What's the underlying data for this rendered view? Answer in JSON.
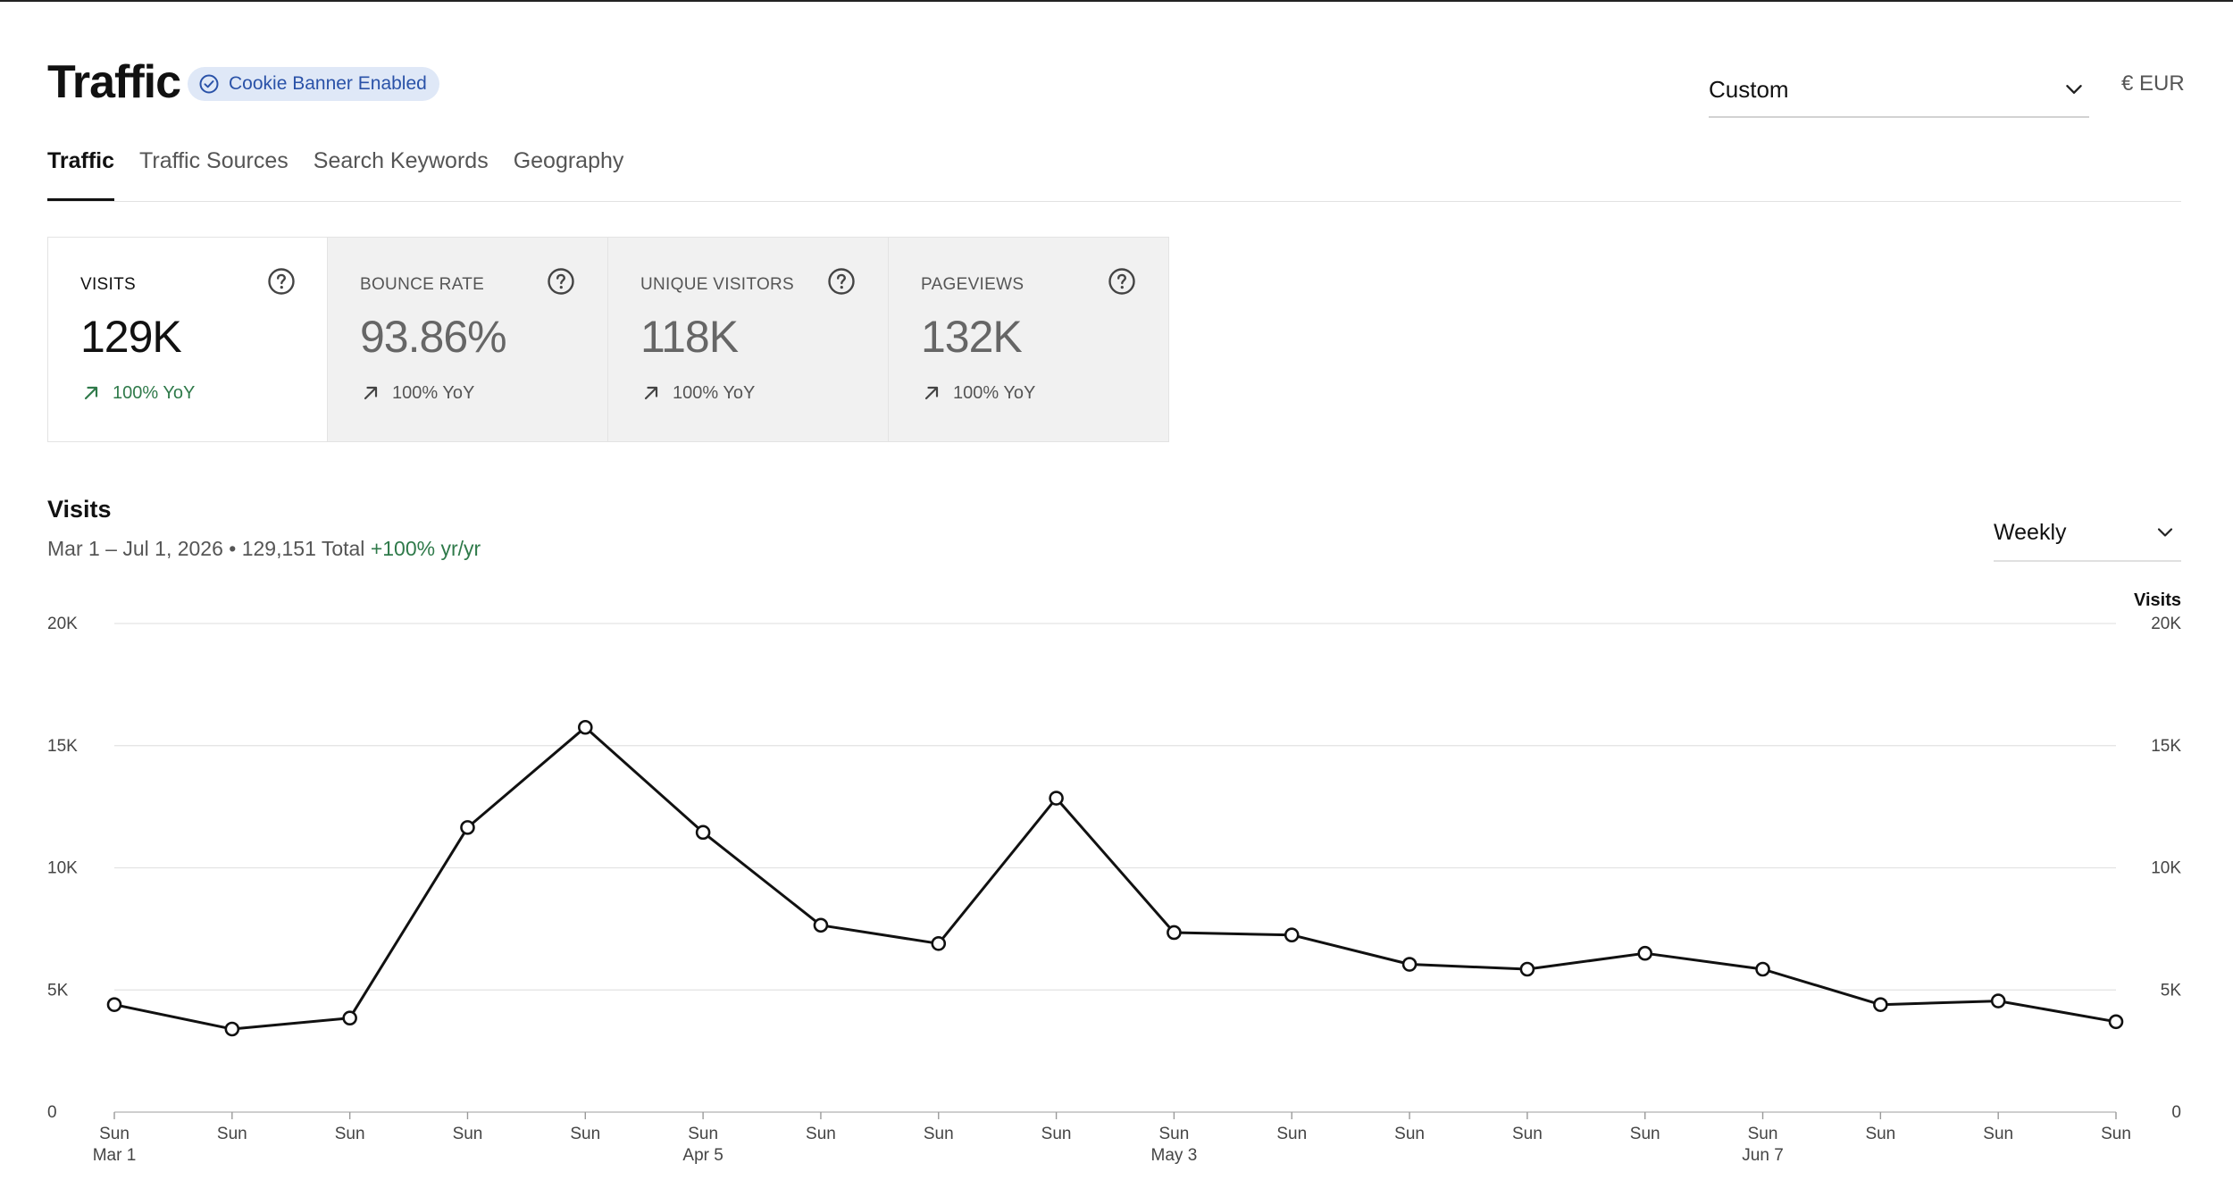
{
  "header": {
    "title": "Traffic",
    "badge": "Cookie Banner Enabled",
    "date_range_select": "Custom",
    "currency": "€ EUR"
  },
  "tabs": [
    {
      "label": "Traffic",
      "active": true
    },
    {
      "label": "Traffic Sources",
      "active": false
    },
    {
      "label": "Search Keywords",
      "active": false
    },
    {
      "label": "Geography",
      "active": false
    }
  ],
  "metrics": [
    {
      "label": "VISITS",
      "value": "129K",
      "trend": "100% YoY",
      "active": true
    },
    {
      "label": "BOUNCE RATE",
      "value": "93.86%",
      "trend": "100% YoY",
      "active": false
    },
    {
      "label": "UNIQUE VISITORS",
      "value": "118K",
      "trend": "100% YoY",
      "active": false
    },
    {
      "label": "PAGEVIEWS",
      "value": "132K",
      "trend": "100% YoY",
      "active": false
    }
  ],
  "chart_header": {
    "title": "Visits",
    "subtitle": "Mar 1 – Jul 1, 2026 • 129,151 Total",
    "change": "+100% yr/yr",
    "interval": "Weekly"
  },
  "colors": {
    "positive": "#2f7a4a",
    "badge_bg": "#dfe8f7",
    "badge_text": "#2a52a8",
    "line": "#111111"
  },
  "chart_data": {
    "type": "line",
    "right_axis_label": "Visits",
    "ylim": [
      0,
      20000
    ],
    "y_ticks": [
      {
        "value": 0,
        "label": "0"
      },
      {
        "value": 5000,
        "label": "5K"
      },
      {
        "value": 10000,
        "label": "10K"
      },
      {
        "value": 15000,
        "label": "15K"
      },
      {
        "value": 20000,
        "label": "20K"
      }
    ],
    "x_labels": [
      "Sun",
      "Sun",
      "Sun",
      "Sun",
      "Sun",
      "Sun",
      "Sun",
      "Sun",
      "Sun",
      "Sun",
      "Sun",
      "Sun",
      "Sun",
      "Sun",
      "Sun",
      "Sun",
      "Sun",
      "Sun"
    ],
    "x_sublabels": [
      "Mar 1",
      "",
      "",
      "",
      "",
      "Apr 5",
      "",
      "",
      "",
      "May 3",
      "",
      "",
      "",
      "",
      "Jun 7",
      "",
      "",
      ""
    ],
    "series": [
      {
        "values": [
          4400,
          3400,
          3850,
          11650,
          15750,
          11450,
          7650,
          6900,
          12850,
          7350,
          7250,
          6050,
          5850,
          6500,
          5850,
          4400,
          4550,
          3700
        ]
      }
    ],
    "grid": true,
    "legend": "none"
  }
}
